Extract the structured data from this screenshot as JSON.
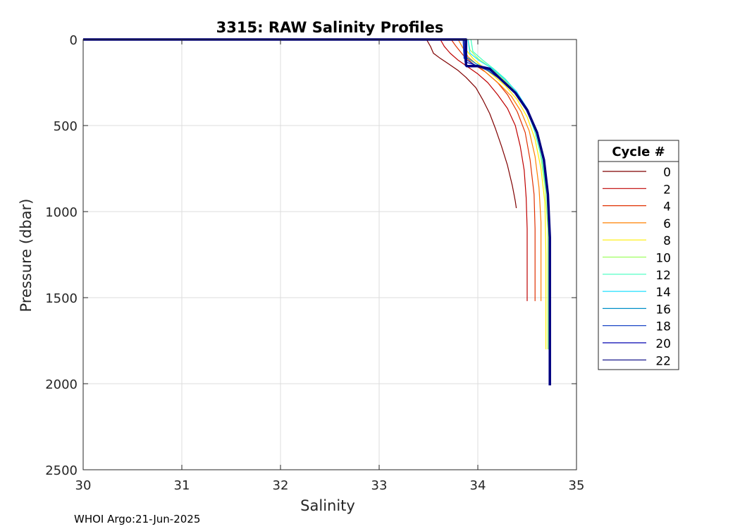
{
  "chart_data": {
    "type": "line",
    "title": "3315: RAW Salinity Profiles",
    "xlabel": "Salinity",
    "ylabel": "Pressure (dbar)",
    "xlim": [
      30,
      35
    ],
    "ylim": [
      0,
      2500
    ],
    "y_reversed": true,
    "grid": true,
    "x_ticks": [
      "30",
      "31",
      "32",
      "33",
      "34",
      "35"
    ],
    "y_ticks": [
      "0",
      "500",
      "1000",
      "1500",
      "2000",
      "2500"
    ],
    "legend": {
      "title": "Cycle #",
      "placement": "outside-right",
      "entries": [
        "0",
        "2",
        "4",
        "6",
        "8",
        "10",
        "12",
        "14",
        "16",
        "18",
        "20",
        "22"
      ],
      "colors": [
        "#7f0000",
        "#bf0000",
        "#e03000",
        "#ff8000",
        "#ffef00",
        "#9fff60",
        "#40ffbf",
        "#20e0ff",
        "#0090c8",
        "#0030c0",
        "#0000b0",
        "#000080"
      ]
    },
    "series": [
      {
        "x": [
          33.48,
          33.52,
          33.55,
          33.62,
          33.7,
          33.8,
          33.88,
          33.98,
          34.05,
          34.12,
          34.18,
          34.24,
          34.3,
          34.35,
          34.38,
          34.39
        ],
        "y": [
          0,
          40,
          80,
          110,
          140,
          180,
          220,
          280,
          350,
          430,
          520,
          620,
          730,
          850,
          940,
          980
        ]
      },
      {
        "x": [
          33.62,
          33.66,
          33.72,
          33.8,
          33.9,
          34.0,
          34.1,
          34.2,
          34.3,
          34.38,
          34.43,
          34.47,
          34.49,
          34.5,
          34.5,
          34.5
        ],
        "y": [
          0,
          40,
          80,
          120,
          160,
          200,
          250,
          320,
          400,
          500,
          620,
          760,
          920,
          1100,
          1350,
          1520
        ]
      },
      {
        "x": [
          33.73,
          33.78,
          33.85,
          33.95,
          34.08,
          34.2,
          34.3,
          34.4,
          34.48,
          34.53,
          34.57,
          34.58,
          34.58,
          34.58
        ],
        "y": [
          0,
          40,
          90,
          140,
          190,
          250,
          320,
          420,
          540,
          700,
          900,
          1100,
          1350,
          1520
        ]
      },
      {
        "x": [
          33.8,
          33.85,
          33.9,
          34.0,
          34.1,
          34.22,
          34.34,
          34.44,
          34.52,
          34.58,
          34.62,
          34.64,
          34.64,
          34.64
        ],
        "y": [
          0,
          50,
          100,
          150,
          200,
          260,
          330,
          420,
          530,
          680,
          860,
          1060,
          1300,
          1520
        ]
      },
      {
        "x": [
          33.85,
          33.88,
          33.95,
          34.05,
          34.16,
          34.28,
          34.4,
          34.5,
          34.58,
          34.64,
          34.68,
          34.69,
          34.69
        ],
        "y": [
          0,
          60,
          110,
          160,
          210,
          270,
          350,
          450,
          580,
          750,
          950,
          1250,
          1800
        ]
      },
      {
        "x": [
          33.9,
          33.92,
          34.0,
          34.12,
          34.24,
          34.36,
          34.47,
          34.56,
          34.63,
          34.68,
          34.71,
          34.71,
          34.71
        ],
        "y": [
          0,
          60,
          110,
          160,
          220,
          290,
          380,
          500,
          650,
          850,
          1100,
          1400,
          1800
        ]
      },
      {
        "x": [
          33.93,
          33.95,
          34.05,
          34.16,
          34.28,
          34.4,
          34.5,
          34.58,
          34.65,
          34.7,
          34.72,
          34.72,
          34.72
        ],
        "y": [
          0,
          70,
          120,
          170,
          230,
          310,
          410,
          540,
          700,
          900,
          1150,
          1450,
          1800
        ]
      },
      {
        "x": [
          33.9,
          33.92,
          34.02,
          34.15,
          34.27,
          34.39,
          34.5,
          34.59,
          34.66,
          34.71,
          34.73,
          34.73,
          34.73
        ],
        "y": [
          0,
          80,
          125,
          170,
          230,
          300,
          400,
          530,
          690,
          900,
          1150,
          1450,
          1850
        ]
      },
      {
        "x": [
          33.87,
          33.88,
          33.98,
          34.12,
          34.26,
          34.38,
          34.5,
          34.6,
          34.67,
          34.71,
          34.73,
          34.73,
          34.73
        ],
        "y": [
          0,
          100,
          140,
          180,
          240,
          310,
          410,
          540,
          700,
          900,
          1150,
          1500,
          1900
        ]
      },
      {
        "x": [
          33.85,
          33.86,
          33.96,
          34.1,
          34.25,
          34.38,
          34.5,
          34.6,
          34.67,
          34.71,
          34.73,
          34.73,
          34.73
        ],
        "y": [
          0,
          110,
          145,
          180,
          240,
          310,
          410,
          540,
          700,
          900,
          1150,
          1550,
          1950
        ]
      },
      {
        "x": [
          33.86,
          33.87,
          33.98,
          34.12,
          34.26,
          34.39,
          34.51,
          34.6,
          34.67,
          34.71,
          34.73,
          34.73,
          34.73
        ],
        "y": [
          0,
          130,
          150,
          175,
          240,
          310,
          410,
          540,
          700,
          900,
          1150,
          1550,
          1990
        ]
      },
      {
        "x": [
          30.0,
          33.88,
          33.88,
          33.89,
          34.0,
          34.12,
          34.25,
          34.38,
          34.5,
          34.6,
          34.67,
          34.71,
          34.73,
          34.73,
          34.73
        ],
        "y": [
          0,
          0,
          150,
          155,
          155,
          170,
          240,
          310,
          410,
          540,
          700,
          900,
          1150,
          1550,
          2010
        ]
      }
    ]
  },
  "footer": "WHOI Argo:21-Jun-2025"
}
